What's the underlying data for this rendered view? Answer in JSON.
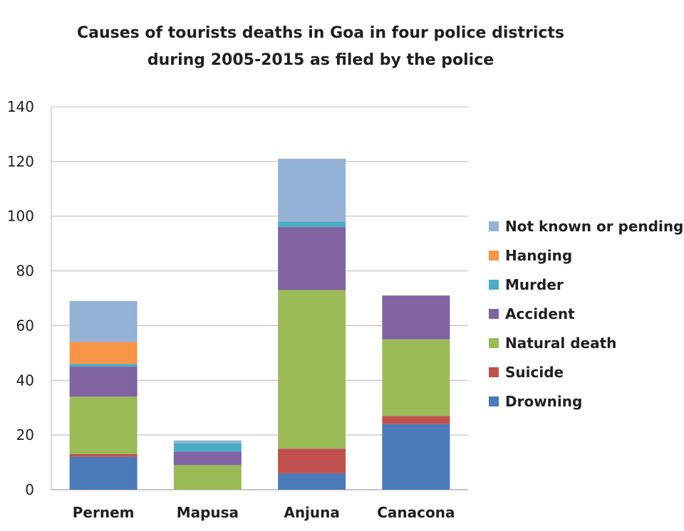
{
  "chart_data": {
    "type": "bar",
    "stacked": true,
    "title": "Causes of tourists deaths in Goa in four police districts",
    "subtitle": "during 2005-2015 as filed by the police",
    "xlabel": "",
    "ylabel": "",
    "ylim": [
      0,
      140
    ],
    "yticks": [
      0,
      20,
      40,
      60,
      80,
      100,
      120,
      140
    ],
    "grid": true,
    "legend_position": "right",
    "categories": [
      "Pernem",
      "Mapusa",
      "Anjuna",
      "Canacona"
    ],
    "series": [
      {
        "name": "Drowning",
        "color": "#4a7ab7",
        "values": [
          12,
          0,
          6,
          24
        ]
      },
      {
        "name": "Suicide",
        "color": "#c0504d",
        "values": [
          1,
          0,
          9,
          3
        ]
      },
      {
        "name": "Natural death",
        "color": "#9bbb59",
        "values": [
          21,
          9,
          58,
          28
        ]
      },
      {
        "name": "Accident",
        "color": "#8064a2",
        "values": [
          11,
          5,
          23,
          16
        ]
      },
      {
        "name": "Murder",
        "color": "#4bacc6",
        "values": [
          1,
          3,
          2,
          0
        ]
      },
      {
        "name": "Hanging",
        "color": "#f79646",
        "values": [
          8,
          0,
          0,
          0
        ]
      },
      {
        "name": "Not known or pending",
        "color": "#95b3d7",
        "values": [
          15,
          1,
          23,
          0
        ]
      }
    ]
  }
}
